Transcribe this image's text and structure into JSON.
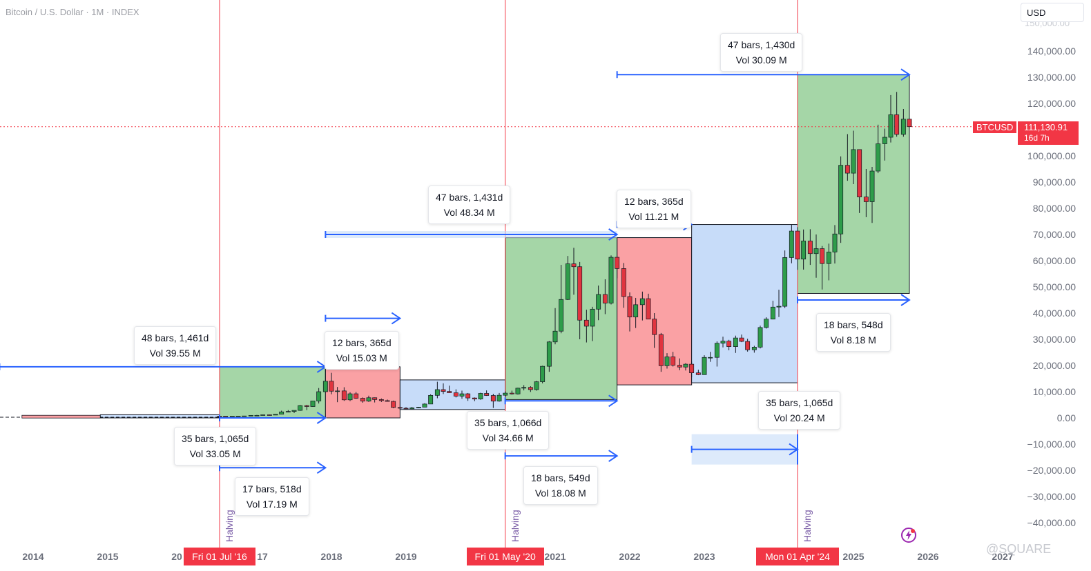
{
  "header": {
    "title": "Bitcoin / U.S. Dollar · 1M · INDEX",
    "currency_button": "USD"
  },
  "price_scale": {
    "ticks": [
      "140,000.00",
      "130,000.00",
      "120,000.00",
      "100,000.00",
      "90,000.00",
      "80,000.00",
      "70,000.00",
      "60,000.00",
      "50,000.00",
      "40,000.00",
      "30,000.00",
      "20,000.00",
      "10,000.00",
      "0.00",
      "−10,000.00",
      "−20,000.00",
      "−30,000.00",
      "−40,000.00"
    ],
    "tick_values": [
      140000,
      130000,
      120000,
      100000,
      90000,
      80000,
      70000,
      60000,
      50000,
      40000,
      30000,
      20000,
      10000,
      0,
      -10000,
      -20000,
      -30000,
      -40000
    ],
    "top_partial": "150,000.00"
  },
  "current_price": {
    "symbol": "BTCUSD",
    "value": "111,130.91",
    "countdown": "16d 7h",
    "numeric": 111130.91,
    "color": "#f23645"
  },
  "time_axis": {
    "labels": [
      {
        "text": "2014",
        "year": 2014
      },
      {
        "text": "2015",
        "year": 2015
      },
      {
        "text": "20",
        "year": 2016
      },
      {
        "text": "17",
        "year": 2017
      },
      {
        "text": "2018",
        "year": 2018
      },
      {
        "text": "2019",
        "year": 2019
      },
      {
        "text": "2021",
        "year": 2021
      },
      {
        "text": "2022",
        "year": 2022
      },
      {
        "text": "2023",
        "year": 2023
      },
      {
        "text": "2025",
        "year": 2025
      },
      {
        "text": "2026",
        "year": 2026
      },
      {
        "text": "2027",
        "year": 2027
      }
    ]
  },
  "halvings": [
    {
      "label": "Halving",
      "date": "Fri 01 Jul '16",
      "t": 2016.5
    },
    {
      "label": "Halving",
      "date": "Fri 01 May '20",
      "t": 2020.33
    },
    {
      "label": "Halving",
      "date": "Mon 01 Apr '24",
      "t": 2024.25
    }
  ],
  "annotations": [
    {
      "line1": "48 bars, 1,461d",
      "line2": "Vol 39.55 M"
    },
    {
      "line1": "35 bars, 1,065d",
      "line2": "Vol 33.05 M"
    },
    {
      "line1": "17 bars, 518d",
      "line2": "Vol 17.19 M"
    },
    {
      "line1": "12 bars, 365d",
      "line2": "Vol 15.03 M"
    },
    {
      "line1": "47 bars, 1,431d",
      "line2": "Vol 48.34 M"
    },
    {
      "line1": "35 bars, 1,066d",
      "line2": "Vol 34.66 M"
    },
    {
      "line1": "18 bars, 549d",
      "line2": "Vol 18.08 M"
    },
    {
      "line1": "12 bars, 365d",
      "line2": "Vol 11.21 M"
    },
    {
      "line1": "35 bars, 1,065d",
      "line2": "Vol 20.24 M"
    },
    {
      "line1": "47 bars, 1,430d",
      "line2": "Vol 30.09 M"
    },
    {
      "line1": "18 bars, 548d",
      "line2": "Vol 8.18 M"
    }
  ],
  "colors": {
    "green_zone": "#a5d6a7",
    "red_zone": "#faa1a4",
    "blue_zone": "#c7dcf9",
    "bull_candle": "#2e9c4a",
    "bear_candle": "#e0343f",
    "range_arrow": "#2962ff",
    "halving_line": "#f23645"
  },
  "watermark": "@SQUARE",
  "chart_data": {
    "type": "candlestick",
    "title": "Bitcoin / U.S. Dollar · 1M · INDEX",
    "x_axis": "time (years)",
    "y_axis": "price (USD)",
    "xlim": [
      2013.6,
      2027.0
    ],
    "ylim": [
      -44000,
      152000
    ],
    "zones": [
      {
        "color": "green",
        "t0": 2016.5,
        "t1": 2017.92,
        "low": 0,
        "high": 19500
      },
      {
        "color": "red",
        "t0": 2017.92,
        "t1": 2018.92,
        "low": 0,
        "high": 19500
      },
      {
        "color": "blue",
        "t0": 2018.92,
        "t1": 2020.33,
        "low": 3200,
        "high": 14500
      },
      {
        "color": "green",
        "t0": 2020.33,
        "t1": 2021.83,
        "low": 7000,
        "high": 68800
      },
      {
        "color": "red",
        "t0": 2021.83,
        "t1": 2022.83,
        "low": 12600,
        "high": 68800
      },
      {
        "color": "blue",
        "t0": 2022.83,
        "t1": 2024.25,
        "low": 13400,
        "high": 73800
      },
      {
        "color": "green",
        "t0": 2024.25,
        "t1": 2025.75,
        "low": 47500,
        "high": 131000
      },
      {
        "color": "blue",
        "t0": 2014.9,
        "t1": 2016.5,
        "low": 0,
        "high": 1200
      }
    ],
    "range_arrows": [
      {
        "t0": 2013.55,
        "t1": 2017.92,
        "price": 19500
      },
      {
        "t0": 2016.5,
        "t1": 2017.92,
        "price": 0
      },
      {
        "t0": 2016.5,
        "t1": 2017.92,
        "price": -19000
      },
      {
        "t0": 2017.92,
        "t1": 2018.92,
        "price": 38000
      },
      {
        "t0": 2017.92,
        "t1": 2021.83,
        "price": 70000
      },
      {
        "t0": 2020.33,
        "t1": 2021.83,
        "price": 6500
      },
      {
        "t0": 2020.33,
        "t1": 2021.83,
        "price": -14500
      },
      {
        "t0": 2021.83,
        "t1": 2022.83,
        "price": 73800
      },
      {
        "t0": 2022.83,
        "t1": 2024.25,
        "price": -12000
      },
      {
        "t0": 2021.83,
        "t1": 2025.75,
        "price": 131000
      },
      {
        "t0": 2024.25,
        "t1": 2025.75,
        "price": 45000
      }
    ],
    "candles": [
      {
        "t": 2016.5,
        "o": 670,
        "h": 770,
        "l": 620,
        "c": 620
      },
      {
        "t": 2016.58,
        "o": 620,
        "h": 630,
        "l": 540,
        "c": 575
      },
      {
        "t": 2016.67,
        "o": 575,
        "h": 630,
        "l": 570,
        "c": 610
      },
      {
        "t": 2016.75,
        "o": 610,
        "h": 720,
        "l": 600,
        "c": 700
      },
      {
        "t": 2016.83,
        "o": 700,
        "h": 750,
        "l": 690,
        "c": 745
      },
      {
        "t": 2016.92,
        "o": 745,
        "h": 980,
        "l": 740,
        "c": 965
      },
      {
        "t": 2017.0,
        "o": 965,
        "h": 1150,
        "l": 750,
        "c": 970
      },
      {
        "t": 2017.08,
        "o": 970,
        "h": 1200,
        "l": 920,
        "c": 1190
      },
      {
        "t": 2017.17,
        "o": 1190,
        "h": 1290,
        "l": 890,
        "c": 1080
      },
      {
        "t": 2017.25,
        "o": 1080,
        "h": 1440,
        "l": 1080,
        "c": 1420
      },
      {
        "t": 2017.33,
        "o": 1420,
        "h": 2760,
        "l": 1400,
        "c": 2300
      },
      {
        "t": 2017.42,
        "o": 2300,
        "h": 2980,
        "l": 2100,
        "c": 2480
      },
      {
        "t": 2017.5,
        "o": 2480,
        "h": 2900,
        "l": 1850,
        "c": 2870
      },
      {
        "t": 2017.58,
        "o": 2870,
        "h": 4950,
        "l": 2700,
        "c": 4700
      },
      {
        "t": 2017.67,
        "o": 4700,
        "h": 4980,
        "l": 2970,
        "c": 4340
      },
      {
        "t": 2017.75,
        "o": 4340,
        "h": 6470,
        "l": 4200,
        "c": 6450
      },
      {
        "t": 2017.83,
        "o": 6450,
        "h": 11400,
        "l": 5500,
        "c": 10000
      },
      {
        "t": 2017.92,
        "o": 10000,
        "h": 19700,
        "l": 10000,
        "c": 14000
      },
      {
        "t": 2018.0,
        "o": 14000,
        "h": 17200,
        "l": 9000,
        "c": 10200
      },
      {
        "t": 2018.08,
        "o": 10200,
        "h": 11800,
        "l": 6000,
        "c": 10300
      },
      {
        "t": 2018.17,
        "o": 10300,
        "h": 11700,
        "l": 6500,
        "c": 6900
      },
      {
        "t": 2018.25,
        "o": 6900,
        "h": 9800,
        "l": 6400,
        "c": 9200
      },
      {
        "t": 2018.33,
        "o": 9200,
        "h": 9900,
        "l": 7300,
        "c": 7500
      },
      {
        "t": 2018.42,
        "o": 7500,
        "h": 7800,
        "l": 5800,
        "c": 6400
      },
      {
        "t": 2018.5,
        "o": 6400,
        "h": 8500,
        "l": 6100,
        "c": 7700
      },
      {
        "t": 2018.58,
        "o": 7700,
        "h": 7800,
        "l": 5900,
        "c": 7000
      },
      {
        "t": 2018.67,
        "o": 7000,
        "h": 7400,
        "l": 6100,
        "c": 6600
      },
      {
        "t": 2018.75,
        "o": 6600,
        "h": 7000,
        "l": 6200,
        "c": 6300
      },
      {
        "t": 2018.83,
        "o": 6300,
        "h": 6600,
        "l": 3700,
        "c": 4000
      },
      {
        "t": 2018.92,
        "o": 4000,
        "h": 4300,
        "l": 3200,
        "c": 3700
      },
      {
        "t": 2019.0,
        "o": 3700,
        "h": 4100,
        "l": 3400,
        "c": 3450
      },
      {
        "t": 2019.08,
        "o": 3450,
        "h": 4200,
        "l": 3400,
        "c": 3850
      },
      {
        "t": 2019.17,
        "o": 3850,
        "h": 4100,
        "l": 3700,
        "c": 4100
      },
      {
        "t": 2019.25,
        "o": 4100,
        "h": 5600,
        "l": 4100,
        "c": 5300
      },
      {
        "t": 2019.33,
        "o": 5300,
        "h": 9000,
        "l": 5300,
        "c": 8600
      },
      {
        "t": 2019.42,
        "o": 8600,
        "h": 13800,
        "l": 7500,
        "c": 10800
      },
      {
        "t": 2019.5,
        "o": 10800,
        "h": 13200,
        "l": 9100,
        "c": 10100
      },
      {
        "t": 2019.58,
        "o": 10100,
        "h": 12300,
        "l": 9500,
        "c": 9600
      },
      {
        "t": 2019.67,
        "o": 9600,
        "h": 10900,
        "l": 7800,
        "c": 8300
      },
      {
        "t": 2019.75,
        "o": 8300,
        "h": 10400,
        "l": 7300,
        "c": 9200
      },
      {
        "t": 2019.83,
        "o": 9200,
        "h": 9500,
        "l": 6500,
        "c": 7600
      },
      {
        "t": 2019.92,
        "o": 7600,
        "h": 7800,
        "l": 6400,
        "c": 7200
      },
      {
        "t": 2020.0,
        "o": 7200,
        "h": 9600,
        "l": 6900,
        "c": 9350
      },
      {
        "t": 2020.08,
        "o": 9350,
        "h": 10500,
        "l": 8400,
        "c": 8550
      },
      {
        "t": 2020.17,
        "o": 8550,
        "h": 9200,
        "l": 3800,
        "c": 6400
      },
      {
        "t": 2020.25,
        "o": 6400,
        "h": 9500,
        "l": 6200,
        "c": 8650
      },
      {
        "t": 2020.33,
        "o": 8650,
        "h": 10100,
        "l": 8100,
        "c": 9450
      },
      {
        "t": 2020.42,
        "o": 9450,
        "h": 10400,
        "l": 8900,
        "c": 9150
      },
      {
        "t": 2020.5,
        "o": 9150,
        "h": 11500,
        "l": 8900,
        "c": 11350
      },
      {
        "t": 2020.58,
        "o": 11350,
        "h": 12500,
        "l": 10500,
        "c": 11650
      },
      {
        "t": 2020.67,
        "o": 11650,
        "h": 12100,
        "l": 9900,
        "c": 10800
      },
      {
        "t": 2020.75,
        "o": 10800,
        "h": 14100,
        "l": 10400,
        "c": 13800
      },
      {
        "t": 2020.83,
        "o": 13800,
        "h": 19900,
        "l": 13200,
        "c": 19700
      },
      {
        "t": 2020.92,
        "o": 19700,
        "h": 29300,
        "l": 17600,
        "c": 29000
      },
      {
        "t": 2021.0,
        "o": 29000,
        "h": 41900,
        "l": 28100,
        "c": 33100
      },
      {
        "t": 2021.08,
        "o": 33100,
        "h": 58400,
        "l": 32300,
        "c": 45200
      },
      {
        "t": 2021.17,
        "o": 45200,
        "h": 61800,
        "l": 45000,
        "c": 58800
      },
      {
        "t": 2021.25,
        "o": 58800,
        "h": 64900,
        "l": 47000,
        "c": 57700
      },
      {
        "t": 2021.33,
        "o": 57700,
        "h": 59500,
        "l": 30000,
        "c": 37300
      },
      {
        "t": 2021.42,
        "o": 37300,
        "h": 41300,
        "l": 28800,
        "c": 35000
      },
      {
        "t": 2021.5,
        "o": 35000,
        "h": 42400,
        "l": 29300,
        "c": 41500
      },
      {
        "t": 2021.58,
        "o": 41500,
        "h": 50500,
        "l": 37300,
        "c": 47100
      },
      {
        "t": 2021.67,
        "o": 47100,
        "h": 52900,
        "l": 39600,
        "c": 43800
      },
      {
        "t": 2021.75,
        "o": 43800,
        "h": 62000,
        "l": 43300,
        "c": 61300
      },
      {
        "t": 2021.83,
        "o": 61300,
        "h": 69000,
        "l": 53300,
        "c": 57000
      },
      {
        "t": 2021.92,
        "o": 57000,
        "h": 59100,
        "l": 42000,
        "c": 46300
      },
      {
        "t": 2022.0,
        "o": 46300,
        "h": 47900,
        "l": 33000,
        "c": 38500
      },
      {
        "t": 2022.08,
        "o": 38500,
        "h": 45800,
        "l": 34300,
        "c": 43200
      },
      {
        "t": 2022.17,
        "o": 43200,
        "h": 48200,
        "l": 37200,
        "c": 45500
      },
      {
        "t": 2022.25,
        "o": 45500,
        "h": 47400,
        "l": 37700,
        "c": 37700
      },
      {
        "t": 2022.33,
        "o": 37700,
        "h": 40000,
        "l": 26700,
        "c": 31800
      },
      {
        "t": 2022.42,
        "o": 31800,
        "h": 32400,
        "l": 17600,
        "c": 19900
      },
      {
        "t": 2022.5,
        "o": 19900,
        "h": 24700,
        "l": 18800,
        "c": 23300
      },
      {
        "t": 2022.58,
        "o": 23300,
        "h": 25200,
        "l": 19600,
        "c": 20100
      },
      {
        "t": 2022.67,
        "o": 20100,
        "h": 22700,
        "l": 18200,
        "c": 19400
      },
      {
        "t": 2022.75,
        "o": 19400,
        "h": 20900,
        "l": 18100,
        "c": 20500
      },
      {
        "t": 2022.83,
        "o": 20500,
        "h": 21500,
        "l": 15500,
        "c": 17200
      },
      {
        "t": 2022.92,
        "o": 17200,
        "h": 18400,
        "l": 16300,
        "c": 16500
      },
      {
        "t": 2023.0,
        "o": 16500,
        "h": 23900,
        "l": 16500,
        "c": 23100
      },
      {
        "t": 2023.08,
        "o": 23100,
        "h": 25200,
        "l": 21400,
        "c": 23100
      },
      {
        "t": 2023.17,
        "o": 23100,
        "h": 29200,
        "l": 19600,
        "c": 28500
      },
      {
        "t": 2023.25,
        "o": 28500,
        "h": 31000,
        "l": 26900,
        "c": 29300
      },
      {
        "t": 2023.33,
        "o": 29300,
        "h": 29800,
        "l": 25800,
        "c": 27200
      },
      {
        "t": 2023.42,
        "o": 27200,
        "h": 31400,
        "l": 24800,
        "c": 30500
      },
      {
        "t": 2023.5,
        "o": 30500,
        "h": 31800,
        "l": 28900,
        "c": 29200
      },
      {
        "t": 2023.58,
        "o": 29200,
        "h": 30200,
        "l": 25300,
        "c": 26000
      },
      {
        "t": 2023.67,
        "o": 26000,
        "h": 27500,
        "l": 24900,
        "c": 27000
      },
      {
        "t": 2023.75,
        "o": 27000,
        "h": 35200,
        "l": 26500,
        "c": 34500
      },
      {
        "t": 2023.83,
        "o": 34500,
        "h": 38400,
        "l": 34100,
        "c": 37700
      },
      {
        "t": 2023.92,
        "o": 37700,
        "h": 44700,
        "l": 37600,
        "c": 42300
      },
      {
        "t": 2024.0,
        "o": 42300,
        "h": 48900,
        "l": 38500,
        "c": 42600
      },
      {
        "t": 2024.08,
        "o": 42600,
        "h": 63900,
        "l": 41900,
        "c": 61200
      },
      {
        "t": 2024.17,
        "o": 61200,
        "h": 73800,
        "l": 59000,
        "c": 71300
      },
      {
        "t": 2024.25,
        "o": 71300,
        "h": 72800,
        "l": 56500,
        "c": 60600
      },
      {
        "t": 2024.33,
        "o": 60600,
        "h": 71900,
        "l": 56600,
        "c": 67500
      },
      {
        "t": 2024.42,
        "o": 67500,
        "h": 72000,
        "l": 58400,
        "c": 62700
      },
      {
        "t": 2024.5,
        "o": 62700,
        "h": 70000,
        "l": 53500,
        "c": 64600
      },
      {
        "t": 2024.58,
        "o": 64600,
        "h": 65600,
        "l": 49000,
        "c": 58900
      },
      {
        "t": 2024.67,
        "o": 58900,
        "h": 66500,
        "l": 52500,
        "c": 63300
      },
      {
        "t": 2024.75,
        "o": 63300,
        "h": 73600,
        "l": 58900,
        "c": 70200
      },
      {
        "t": 2024.83,
        "o": 70200,
        "h": 99800,
        "l": 66800,
        "c": 96400
      },
      {
        "t": 2024.92,
        "o": 96400,
        "h": 108300,
        "l": 90500,
        "c": 93400
      },
      {
        "t": 2025.0,
        "o": 93400,
        "h": 109600,
        "l": 89200,
        "c": 102400
      },
      {
        "t": 2025.08,
        "o": 102400,
        "h": 102500,
        "l": 78200,
        "c": 84300
      },
      {
        "t": 2025.17,
        "o": 84300,
        "h": 95000,
        "l": 76600,
        "c": 82500
      },
      {
        "t": 2025.25,
        "o": 82500,
        "h": 95800,
        "l": 74400,
        "c": 94200
      },
      {
        "t": 2025.33,
        "o": 94200,
        "h": 111900,
        "l": 93400,
        "c": 104600
      },
      {
        "t": 2025.42,
        "o": 104600,
        "h": 110400,
        "l": 98200,
        "c": 107100
      },
      {
        "t": 2025.5,
        "o": 107100,
        "h": 123200,
        "l": 105100,
        "c": 115700
      },
      {
        "t": 2025.58,
        "o": 115700,
        "h": 124400,
        "l": 107300,
        "c": 108200
      },
      {
        "t": 2025.67,
        "o": 108200,
        "h": 117900,
        "l": 107300,
        "c": 114000
      },
      {
        "t": 2025.75,
        "o": 114000,
        "h": 126200,
        "l": 102000,
        "c": 111130
      }
    ]
  }
}
